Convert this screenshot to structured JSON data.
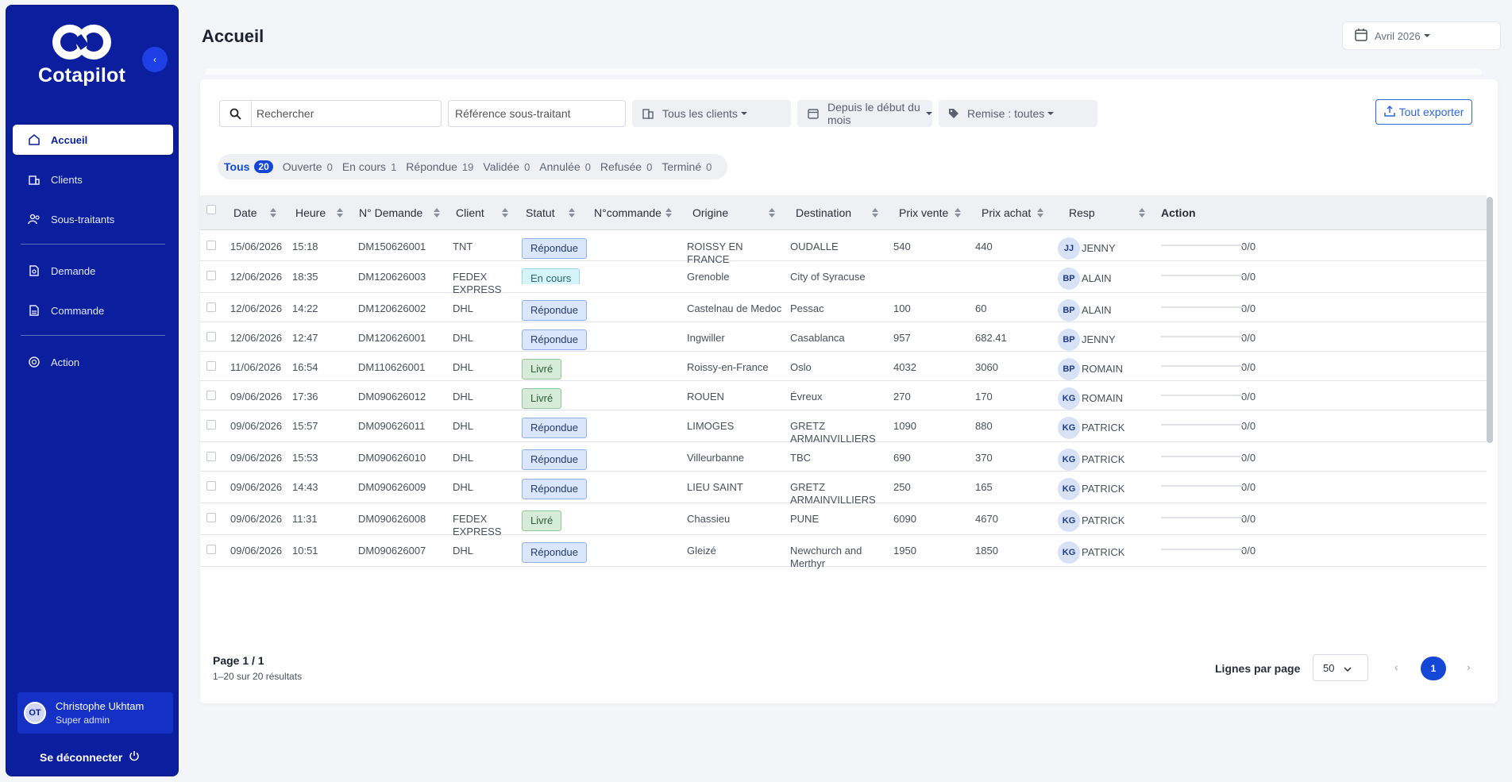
{
  "brand": {
    "name": "Cotapilot"
  },
  "sidebar": {
    "items": [
      {
        "label": "Accueil",
        "icon": "home-icon",
        "active": true
      },
      {
        "label": "Clients",
        "icon": "building-icon"
      },
      {
        "label": "Sous-traitants",
        "icon": "users-icon"
      },
      {
        "label": "Demande",
        "icon": "file-request-icon"
      },
      {
        "label": "Commande",
        "icon": "document-icon"
      },
      {
        "label": "Action",
        "icon": "target-icon"
      }
    ],
    "user": {
      "initials": "OT",
      "name": "Christophe Ukhtam",
      "role": "Super admin"
    },
    "logout_label": "Se déconnecter"
  },
  "header": {
    "title": "Accueil",
    "month": "Avril 2026"
  },
  "filters": {
    "search_placeholder": "Rechercher",
    "ref_placeholder": "Référence sous-traitant",
    "clients": "Tous les clients",
    "period": "Depuis le début du mois",
    "remise": "Remise : toutes",
    "export_label": "Tout exporter"
  },
  "tabs": [
    {
      "label": "Tous",
      "count": "20",
      "active": true
    },
    {
      "label": "Ouverte",
      "count": "0"
    },
    {
      "label": "En cours",
      "count": "1"
    },
    {
      "label": "Répondue",
      "count": "19"
    },
    {
      "label": "Validée",
      "count": "0"
    },
    {
      "label": "Annulée",
      "count": "0"
    },
    {
      "label": "Refusée",
      "count": "0"
    },
    {
      "label": "Terminé",
      "count": "0"
    }
  ],
  "table": {
    "columns": [
      "Date",
      "Heure",
      "N° Demande",
      "Client",
      "Statut",
      "N°commande",
      "Origine",
      "Destination",
      "Prix vente",
      "Prix achat",
      "Resp",
      "Action"
    ],
    "rows": [
      {
        "date": "15/06/2026",
        "heure": "15:18",
        "num": "DM150626001",
        "client": "TNT",
        "statut": "Répondue",
        "commande": "",
        "origine": "ROISSY EN FRANCE",
        "destination": "OUDALLE",
        "vente": "540",
        "achat": "440",
        "initials": "JJ",
        "resp": "JENNY",
        "action": "0/0"
      },
      {
        "date": "12/06/2026",
        "heure": "18:35",
        "num": "DM120626003",
        "client": "FEDEX EXPRESS",
        "statut": "En cours",
        "commande": "",
        "origine": "Grenoble",
        "destination": "City of Syracuse",
        "vente": "",
        "achat": "",
        "initials": "BP",
        "resp": "ALAIN",
        "action": "0/0"
      },
      {
        "date": "12/06/2026",
        "heure": "14:22",
        "num": "DM120626002",
        "client": "DHL",
        "statut": "Répondue",
        "commande": "",
        "origine": "Castelnau de Medoc",
        "destination": "Pessac",
        "vente": "100",
        "achat": "60",
        "initials": "BP",
        "resp": "ALAIN",
        "action": "0/0"
      },
      {
        "date": "12/06/2026",
        "heure": "12:47",
        "num": "DM120626001",
        "client": "DHL",
        "statut": "Répondue",
        "commande": "",
        "origine": "Ingwiller",
        "destination": "Casablanca",
        "vente": "957",
        "achat": "682.41",
        "initials": "BP",
        "resp": "JENNY",
        "action": "0/0"
      },
      {
        "date": "11/06/2026",
        "heure": "16:54",
        "num": "DM110626001",
        "client": "DHL",
        "statut": "Livré",
        "commande": "",
        "origine": "Roissy-en-France",
        "destination": "Oslo",
        "vente": "4032",
        "achat": "3060",
        "initials": "BP",
        "resp": "ROMAIN",
        "action": "0/0"
      },
      {
        "date": "09/06/2026",
        "heure": "17:36",
        "num": "DM090626012",
        "client": "DHL",
        "statut": "Livré",
        "commande": "",
        "origine": "ROUEN",
        "destination": "Évreux",
        "vente": "270",
        "achat": "170",
        "initials": "KG",
        "resp": "ROMAIN",
        "action": "0/0"
      },
      {
        "date": "09/06/2026",
        "heure": "15:57",
        "num": "DM090626011",
        "client": "DHL",
        "statut": "Répondue",
        "commande": "",
        "origine": "LIMOGES",
        "destination": "GRETZ ARMAINVILLIERS",
        "vente": "1090",
        "achat": "880",
        "initials": "KG",
        "resp": "PATRICK",
        "action": "0/0"
      },
      {
        "date": "09/06/2026",
        "heure": "15:53",
        "num": "DM090626010",
        "client": "DHL",
        "statut": "Répondue",
        "commande": "",
        "origine": "Villeurbanne",
        "destination": "TBC",
        "vente": "690",
        "achat": "370",
        "initials": "KG",
        "resp": "PATRICK",
        "action": "0/0"
      },
      {
        "date": "09/06/2026",
        "heure": "14:43",
        "num": "DM090626009",
        "client": "DHL",
        "statut": "Répondue",
        "commande": "",
        "origine": "LIEU SAINT",
        "destination": "GRETZ ARMAINVILLIERS",
        "vente": "250",
        "achat": "165",
        "initials": "KG",
        "resp": "PATRICK",
        "action": "0/0"
      },
      {
        "date": "09/06/2026",
        "heure": "11:31",
        "num": "DM090626008",
        "client": "FEDEX EXPRESS",
        "statut": "Livré",
        "commande": "",
        "origine": "Chassieu",
        "destination": "PUNE",
        "vente": "6090",
        "achat": "4670",
        "initials": "KG",
        "resp": "PATRICK",
        "action": "0/0"
      },
      {
        "date": "09/06/2026",
        "heure": "10:51",
        "num": "DM090626007",
        "client": "DHL",
        "statut": "Répondue",
        "commande": "",
        "origine": "Gleizé",
        "destination": "Newchurch and Merthyr",
        "vente": "1950",
        "achat": "1850",
        "initials": "KG",
        "resp": "PATRICK",
        "action": "0/0"
      }
    ]
  },
  "pagination": {
    "page_label": "Page 1 / 1",
    "results_label": "1–20 sur 20 résultats",
    "rows_per_page_label": "Lignes par page",
    "rows_per_page": "50",
    "current_page": "1"
  },
  "colors": {
    "sidebar": "#0b1f9e",
    "accent": "#1447d6",
    "badge_repondue": "#d9e6fb",
    "badge_livre": "#d6ecd9",
    "badge_encours": "#d5f3f8"
  }
}
